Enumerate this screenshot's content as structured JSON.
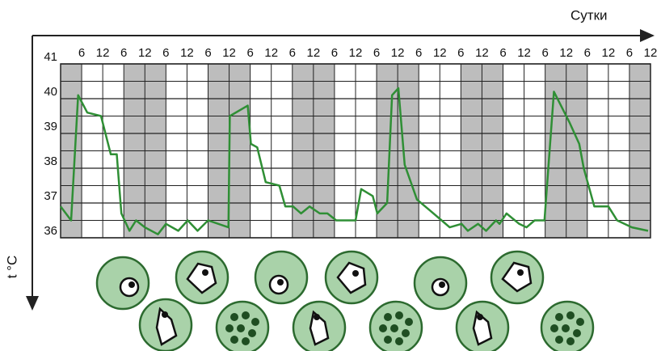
{
  "chart_data": {
    "type": "line",
    "x_label": "Сутки",
    "y_label": "t °C",
    "color": "#2f8f35",
    "xlim": [
      0,
      168
    ],
    "ylim": [
      36,
      41
    ],
    "yticks": [
      36,
      37,
      38,
      39,
      40,
      41
    ],
    "yticks_minor": [
      36.5,
      37.5,
      38.5,
      39.5,
      40.5
    ],
    "xticks": [
      6,
      12,
      {
        "value": 18,
        "label": "6"
      },
      {
        "value": 24,
        "label": "12"
      },
      {
        "value": 30,
        "label": "6"
      },
      {
        "value": 36,
        "label": "12"
      },
      {
        "value": 42,
        "label": "6"
      },
      {
        "value": 48,
        "label": "12"
      },
      {
        "value": 54,
        "label": "6"
      },
      {
        "value": 60,
        "label": "12"
      },
      {
        "value": 66,
        "label": "6"
      },
      {
        "value": 72,
        "label": "12"
      },
      {
        "value": 78,
        "label": "6"
      },
      {
        "value": 84,
        "label": "12"
      },
      {
        "value": 90,
        "label": "6"
      },
      {
        "value": 96,
        "label": "12"
      },
      {
        "value": 102,
        "label": "6"
      },
      {
        "value": 108,
        "label": "12"
      },
      {
        "value": 114,
        "label": "6"
      },
      {
        "value": 120,
        "label": "12"
      },
      {
        "value": 126,
        "label": "6"
      },
      {
        "value": 132,
        "label": "12"
      },
      {
        "value": 138,
        "label": "6"
      },
      {
        "value": 144,
        "label": "12"
      },
      {
        "value": 150,
        "label": "6"
      },
      {
        "value": 156,
        "label": "12"
      },
      {
        "value": 162,
        "label": "6"
      },
      {
        "value": 168,
        "label": "12"
      }
    ],
    "night_bands": [
      [
        0,
        6
      ],
      [
        18,
        30
      ],
      [
        42,
        54
      ],
      [
        66,
        78
      ],
      [
        90,
        102
      ],
      [
        114,
        126
      ],
      [
        138,
        150
      ],
      [
        162,
        168
      ]
    ],
    "x": [
      0,
      3,
      5,
      7.6,
      11.5,
      14.3,
      16,
      17.3,
      19.6,
      21.5,
      24,
      27.7,
      30,
      33.5,
      36.2,
      39,
      42,
      47.8,
      48.2,
      53.3,
      54.2,
      56,
      58.4,
      62.3,
      64,
      66.2,
      68.5,
      70.9,
      73.8,
      76,
      78.5,
      84,
      85.6,
      88.9,
      90.2,
      93,
      94.4,
      96.2,
      98,
      101.5,
      105,
      108.5,
      110.8,
      114.2,
      116,
      118.9,
      121.2,
      124,
      125,
      127,
      130.6,
      132.7,
      135,
      137.8,
      140.5,
      145,
      147.7,
      149,
      152,
      156,
      158.5,
      162.7,
      167.3
    ],
    "values": [
      36.9,
      36.5,
      40.1,
      39.6,
      39.5,
      38.4,
      38.4,
      36.7,
      36.2,
      36.5,
      36.3,
      36.1,
      36.4,
      36.2,
      36.5,
      36.2,
      36.5,
      36.3,
      39.5,
      39.8,
      38.7,
      38.6,
      37.6,
      37.5,
      36.9,
      36.9,
      36.7,
      36.9,
      36.7,
      36.7,
      36.5,
      36.5,
      37.4,
      37.2,
      36.7,
      37.0,
      40.1,
      40.3,
      38.1,
      37.1,
      36.8,
      36.5,
      36.3,
      36.4,
      36.2,
      36.4,
      36.2,
      36.5,
      36.4,
      36.7,
      36.4,
      36.3,
      36.5,
      36.5,
      40.2,
      39.3,
      38.7,
      38.0,
      36.9,
      36.9,
      36.5,
      36.3,
      36.2
    ]
  }
}
